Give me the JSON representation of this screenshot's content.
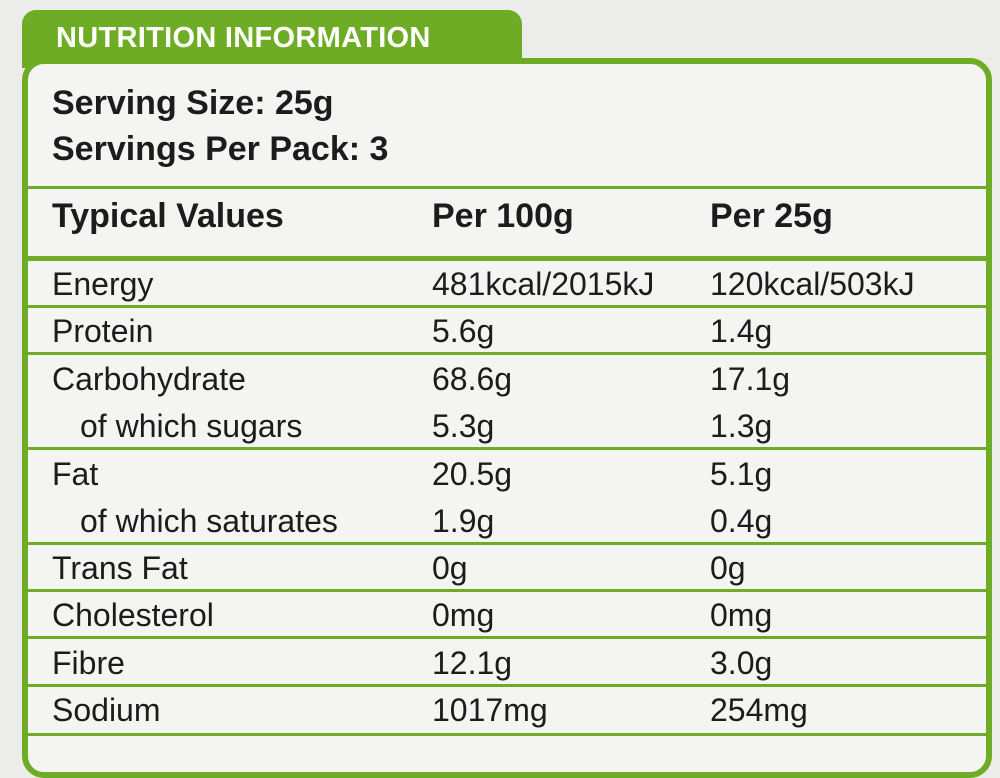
{
  "title": "NUTRITION INFORMATION",
  "serving_size": "Serving Size: 25g",
  "servings_per_pack": "Servings Per Pack: 3",
  "table": {
    "headers": [
      "Typical Values",
      "Per 100g",
      "Per 25g"
    ],
    "rows": [
      {
        "name": "Energy",
        "per_100g": "481kcal/2015kJ",
        "per_25g": "120kcal/503kJ"
      },
      {
        "name": "Protein",
        "per_100g": "5.6g",
        "per_25g": "1.4g"
      },
      {
        "name": "Carbohydrate",
        "per_100g": "68.6g",
        "per_25g": "17.1g"
      },
      {
        "name": "of which sugars",
        "per_100g": "5.3g",
        "per_25g": "1.3g"
      },
      {
        "name": "Fat",
        "per_100g": "20.5g",
        "per_25g": "5.1g"
      },
      {
        "name": "of which saturates",
        "per_100g": "1.9g",
        "per_25g": "0.4g"
      },
      {
        "name": "Trans Fat",
        "per_100g": "0g",
        "per_25g": "0g"
      },
      {
        "name": "Cholesterol",
        "per_100g": "0mg",
        "per_25g": "0mg"
      },
      {
        "name": "Fibre",
        "per_100g": "12.1g",
        "per_25g": "3.0g"
      },
      {
        "name": "Sodium",
        "per_100g": "1017mg",
        "per_25g": "254mg"
      }
    ]
  },
  "colors": {
    "accent": "#6fac25",
    "background": "#f4f4f3",
    "text": "#1c1c1c"
  }
}
